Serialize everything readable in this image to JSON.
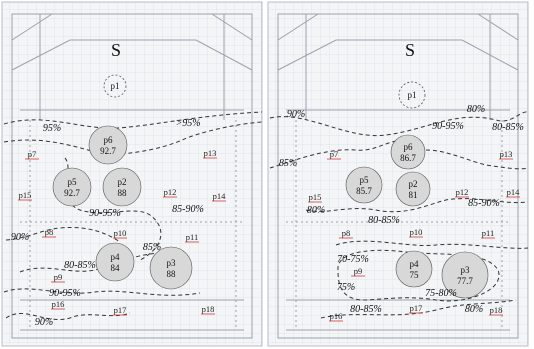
{
  "panels": [
    {
      "id": "left",
      "compass": "S",
      "circles": [
        {
          "id": "p1",
          "label": "p1",
          "value": ""
        },
        {
          "id": "p6",
          "label": "p6",
          "value": "92.7"
        },
        {
          "id": "p5",
          "label": "p5",
          "value": "92.7"
        },
        {
          "id": "p2",
          "label": "p2",
          "value": "88"
        },
        {
          "id": "p4",
          "label": "p4",
          "value": "84"
        },
        {
          "id": "p3",
          "label": "p3",
          "value": "88"
        }
      ],
      "points": [
        {
          "id": "p7",
          "label": "p7"
        },
        {
          "id": "p8",
          "label": "p8"
        },
        {
          "id": "p9",
          "label": "p9"
        },
        {
          "id": "p10",
          "label": "p10"
        },
        {
          "id": "p11",
          "label": "p11"
        },
        {
          "id": "p12",
          "label": "p12"
        },
        {
          "id": "p13",
          "label": "p13"
        },
        {
          "id": "p14",
          "label": "p14"
        },
        {
          "id": "p15",
          "label": "p15"
        },
        {
          "id": "p16",
          "label": "p16"
        },
        {
          "id": "p17",
          "label": "p17"
        },
        {
          "id": "p18",
          "label": "p18"
        }
      ],
      "zone_labels": [
        {
          "id": "z1",
          "text": "95%"
        },
        {
          "id": "z2",
          "text": ">95%"
        },
        {
          "id": "z3",
          "text": "90-95%"
        },
        {
          "id": "z4",
          "text": "85-90%"
        },
        {
          "id": "z5",
          "text": "90%"
        },
        {
          "id": "z6",
          "text": "85%"
        },
        {
          "id": "z7",
          "text": "80-85%"
        },
        {
          "id": "z8",
          "text": "90-95%"
        },
        {
          "id": "z9",
          "text": "90%"
        }
      ]
    },
    {
      "id": "right",
      "compass": "S",
      "circles": [
        {
          "id": "p1",
          "label": "p1",
          "value": ""
        },
        {
          "id": "p6",
          "label": "p6",
          "value": "86.7"
        },
        {
          "id": "p5",
          "label": "p5",
          "value": "85.7"
        },
        {
          "id": "p2",
          "label": "p2",
          "value": "81"
        },
        {
          "id": "p4",
          "label": "p4",
          "value": "75"
        },
        {
          "id": "p3",
          "label": "p3",
          "value": "77.7"
        }
      ],
      "points": [
        {
          "id": "p7",
          "label": "p7"
        },
        {
          "id": "p8",
          "label": "p8"
        },
        {
          "id": "p9",
          "label": "p9"
        },
        {
          "id": "p10",
          "label": "p10"
        },
        {
          "id": "p11",
          "label": "p11"
        },
        {
          "id": "p12",
          "label": "p12"
        },
        {
          "id": "p13",
          "label": "p13"
        },
        {
          "id": "p14",
          "label": "p14"
        },
        {
          "id": "p15",
          "label": "p15"
        },
        {
          "id": "p16",
          "label": "p16"
        },
        {
          "id": "p17",
          "label": "p17"
        },
        {
          "id": "p18",
          "label": "p18"
        }
      ],
      "zone_labels": [
        {
          "id": "z1",
          "text": "80%"
        },
        {
          "id": "z2",
          "text": "90%"
        },
        {
          "id": "z3",
          "text": "90-95%"
        },
        {
          "id": "z4",
          "text": "80-85%"
        },
        {
          "id": "z5",
          "text": "85%"
        },
        {
          "id": "z6",
          "text": "85-90%"
        },
        {
          "id": "z7",
          "text": "80%"
        },
        {
          "id": "z8",
          "text": "80-85%"
        },
        {
          "id": "z9",
          "text": "70-75%"
        },
        {
          "id": "z10",
          "text": "75%"
        },
        {
          "id": "z11",
          "text": "75-80%"
        },
        {
          "id": "z12",
          "text": "80-85%"
        },
        {
          "id": "z13",
          "text": "80%"
        }
      ]
    }
  ]
}
